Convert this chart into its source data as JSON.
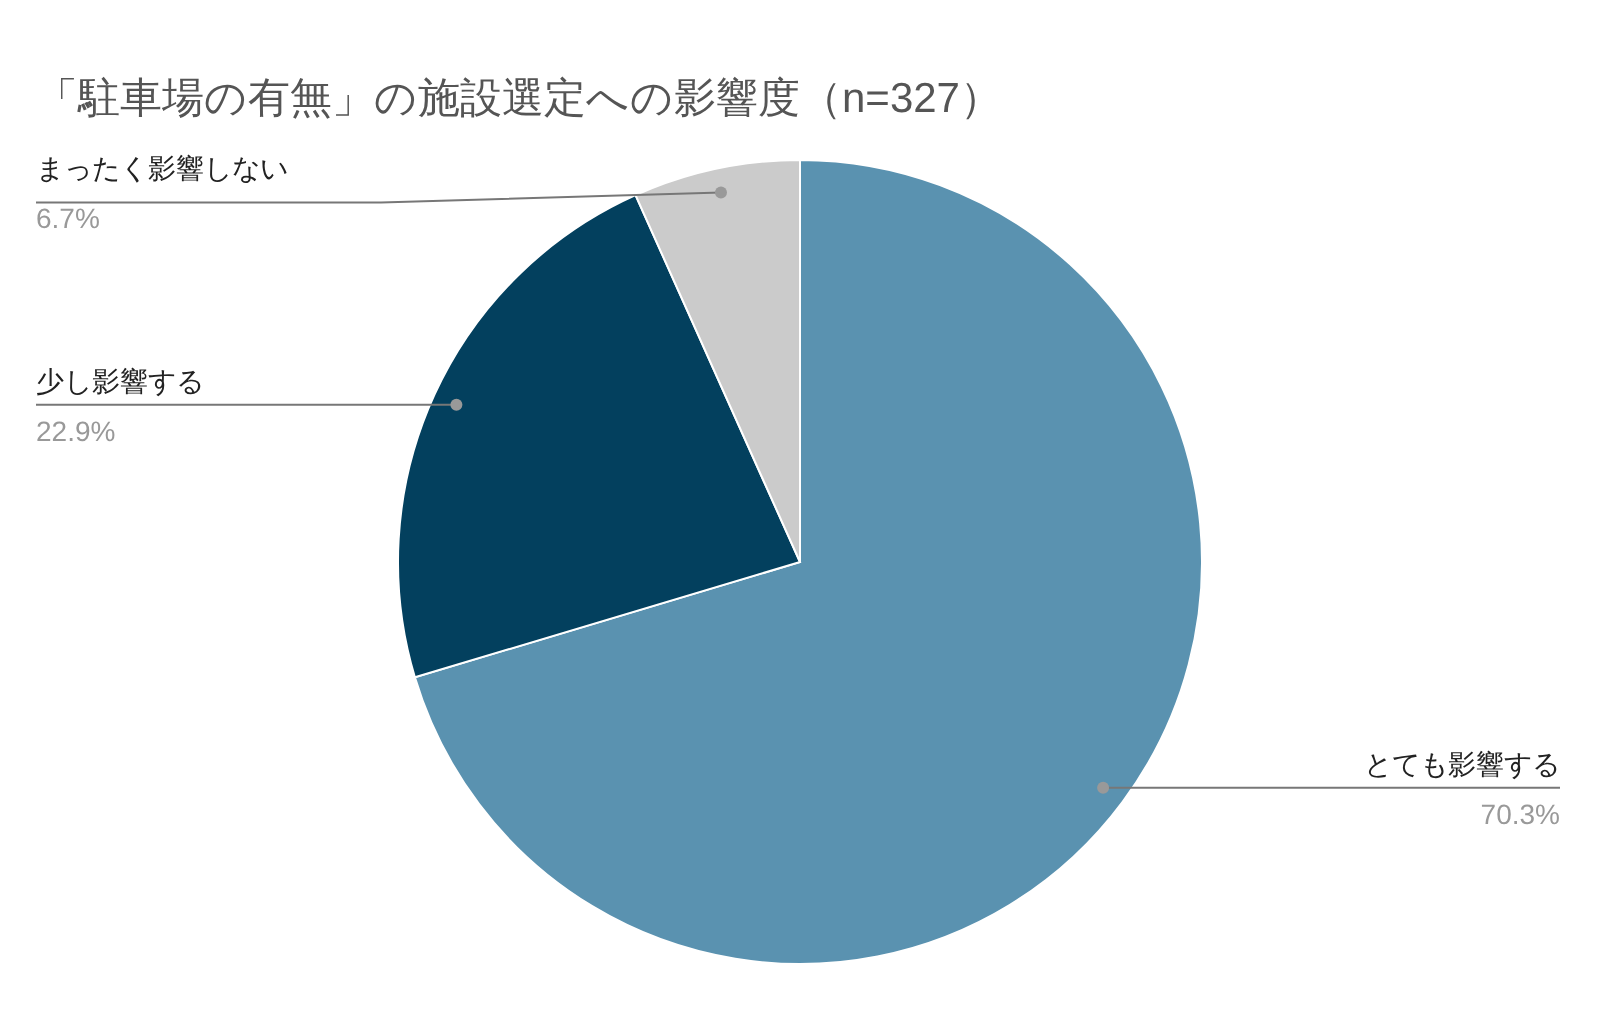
{
  "chart_data": {
    "type": "pie",
    "title": "「駐車場の有無」の施設選定への影響度（n=327）",
    "categories": [
      "とても影響する",
      "少し影響する",
      "まったく影響しない"
    ],
    "values": [
      70.3,
      22.9,
      6.7
    ],
    "colors": [
      "#5a92b0",
      "#03405e",
      "#cbcbcb"
    ],
    "value_labels": [
      "70.3%",
      "22.9%",
      "6.7%"
    ]
  }
}
